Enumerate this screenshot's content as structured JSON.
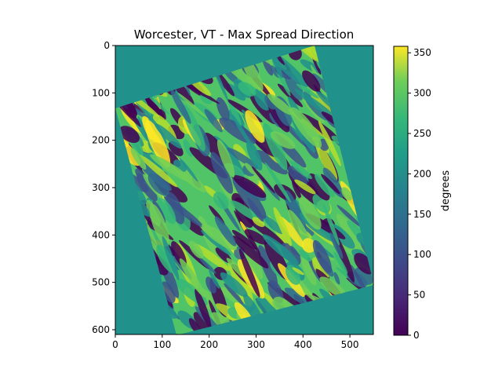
{
  "chart_data": {
    "type": "heatmap",
    "title": "Worcester, VT - Max Spread Direction",
    "xlabel": "",
    "ylabel": "",
    "x_range": [
      0,
      550
    ],
    "y_range": [
      0,
      610
    ],
    "y_inverted": true,
    "x_ticks": [
      "0",
      "100",
      "200",
      "300",
      "400",
      "500"
    ],
    "y_ticks": [
      "0",
      "100",
      "200",
      "300",
      "400",
      "500",
      "600"
    ],
    "background_value": 190,
    "colormap": "viridis",
    "colorbar": {
      "label": "degrees",
      "range": [
        0,
        358
      ],
      "ticks": [
        "0",
        "50",
        "100",
        "150",
        "200",
        "250",
        "300",
        "350"
      ]
    },
    "data_region_corners": [
      [
        0,
        130
      ],
      [
        420,
        0
      ],
      [
        550,
        505
      ],
      [
        130,
        610
      ]
    ],
    "grid": false
  }
}
